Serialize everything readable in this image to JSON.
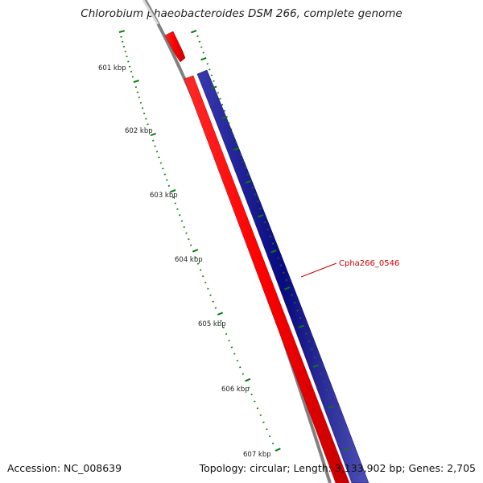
{
  "title": "Chlorobium phaeobacteroides DSM 266, complete genome",
  "footer": {
    "accession_label": "Accession:",
    "accession": "NC_008639",
    "topology_label": "Topology:",
    "topology": "circular",
    "length_label": "Length:",
    "length": "3,133,902 bp",
    "genes_label": "Genes:",
    "genes": "2,705"
  },
  "map": {
    "kbp_labels": [
      "601 kbp",
      "602 kbp",
      "603 kbp",
      "604 kbp",
      "605 kbp",
      "606 kbp",
      "607 kbp"
    ],
    "gene_label": "Cpha266_0546",
    "colors": {
      "backbone": "#808080",
      "forward_genes": "#ff0000",
      "reverse_genes": "#0a0a80",
      "ticks": "#0a7a0a",
      "gene_label": "#cc0000",
      "tick_label": "#222222"
    }
  }
}
